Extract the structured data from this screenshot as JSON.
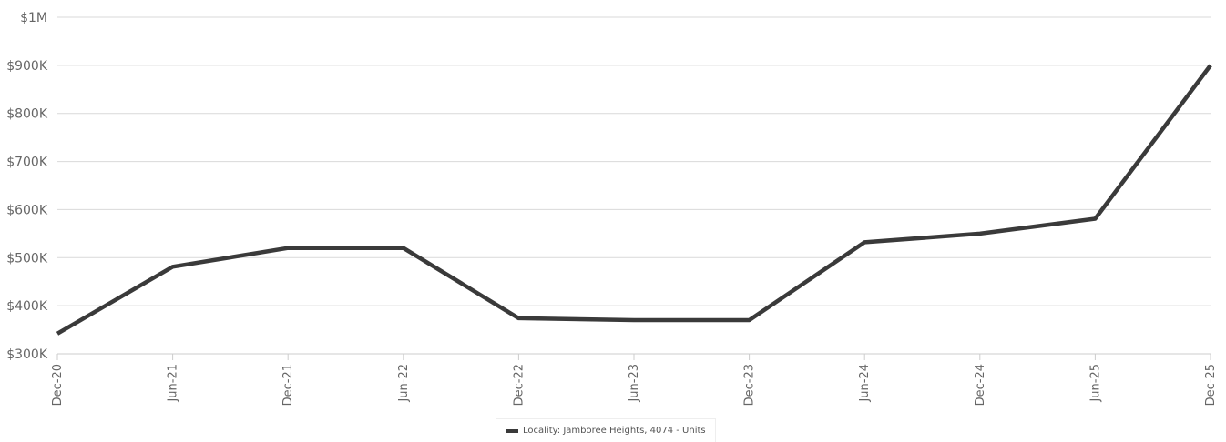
{
  "chart_data": {
    "type": "line",
    "title": "",
    "xlabel": "",
    "ylabel": "",
    "categories": [
      "Dec-20",
      "Jun-21",
      "Dec-21",
      "Jun-22",
      "Dec-22",
      "Jun-23",
      "Dec-23",
      "Jun-24",
      "Dec-24",
      "Jun-25",
      "Dec-25"
    ],
    "series": [
      {
        "name": "Locality: Jamboree Heights, 4074 - Units",
        "values": [
          342000,
          481000,
          520000,
          520000,
          374000,
          370000,
          370000,
          532000,
          550000,
          581000,
          900000
        ],
        "color": "#3a3a3a"
      }
    ],
    "ylim": [
      300000,
      1000000
    ],
    "yticks": [
      300000,
      400000,
      500000,
      600000,
      700000,
      800000,
      900000,
      1000000
    ],
    "ytick_labels": [
      "$300K",
      "$400K",
      "$500K",
      "$600K",
      "$700K",
      "$800K",
      "$900K",
      "$1M"
    ],
    "grid": true,
    "legend_position": "bottom-center",
    "colors": {
      "line": "#3a3a3a",
      "grid": "#d9d9d9",
      "axis": "#cccccc",
      "tick_text": "#666666"
    }
  }
}
